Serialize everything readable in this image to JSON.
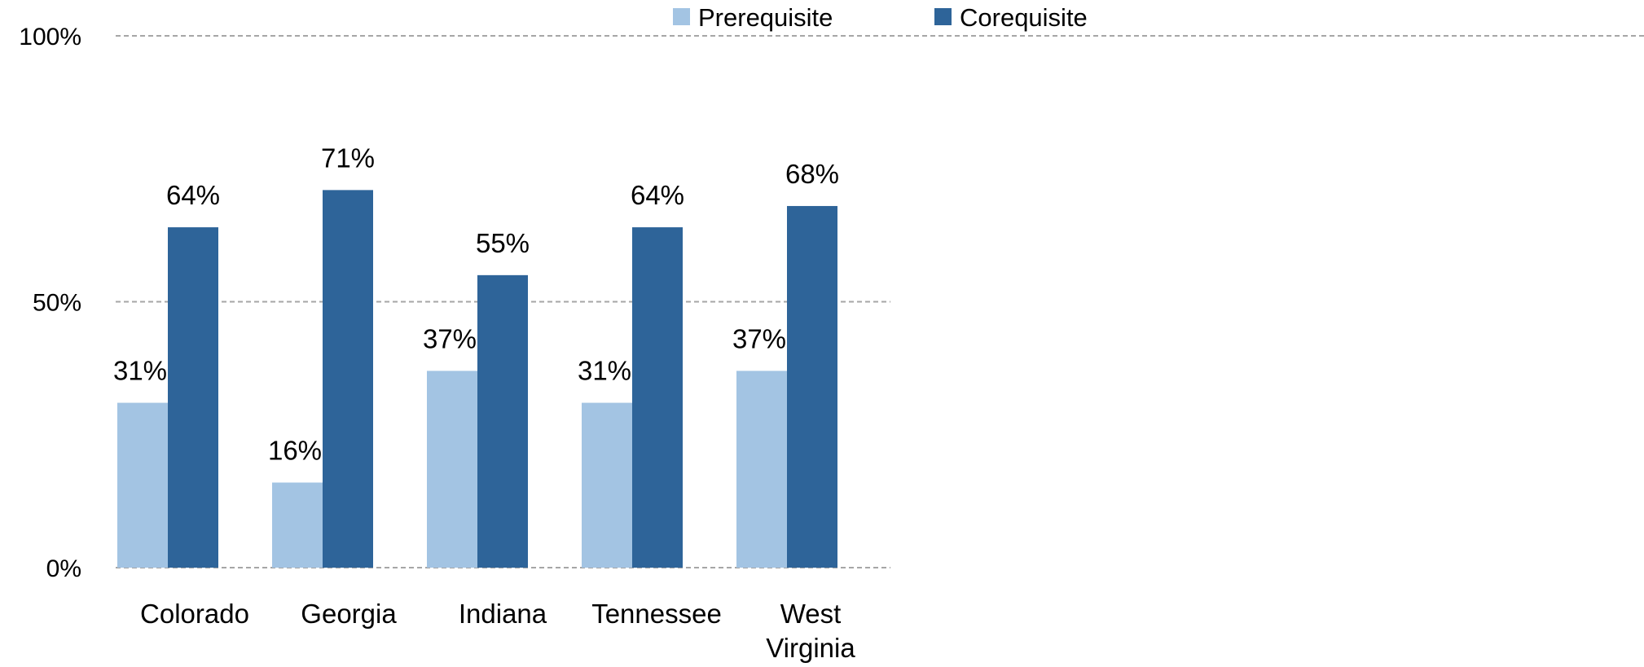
{
  "chart_data": {
    "type": "bar",
    "categories": [
      "Colorado",
      "Georgia",
      "Indiana",
      "Tennessee",
      "West Virginia"
    ],
    "series": [
      {
        "name": "Prerequisite",
        "values": [
          31,
          16,
          37,
          31,
          37
        ],
        "labels": [
          "31%",
          "16%",
          "37%",
          "31%",
          "37%"
        ],
        "color": "#a3c4e3"
      },
      {
        "name": "Corequisite",
        "values": [
          64,
          71,
          55,
          64,
          68
        ],
        "labels": [
          "64%",
          "71%",
          "55%",
          "64%",
          "68%"
        ],
        "color": "#2e6499"
      }
    ],
    "yticks": [
      {
        "value": 0,
        "label": "0%"
      },
      {
        "value": 50,
        "label": "50%"
      },
      {
        "value": 100,
        "label": "100%"
      }
    ],
    "ylim": [
      0,
      100
    ],
    "grid": true,
    "grid_color": "#a6a6a6",
    "legend_position": "top"
  }
}
